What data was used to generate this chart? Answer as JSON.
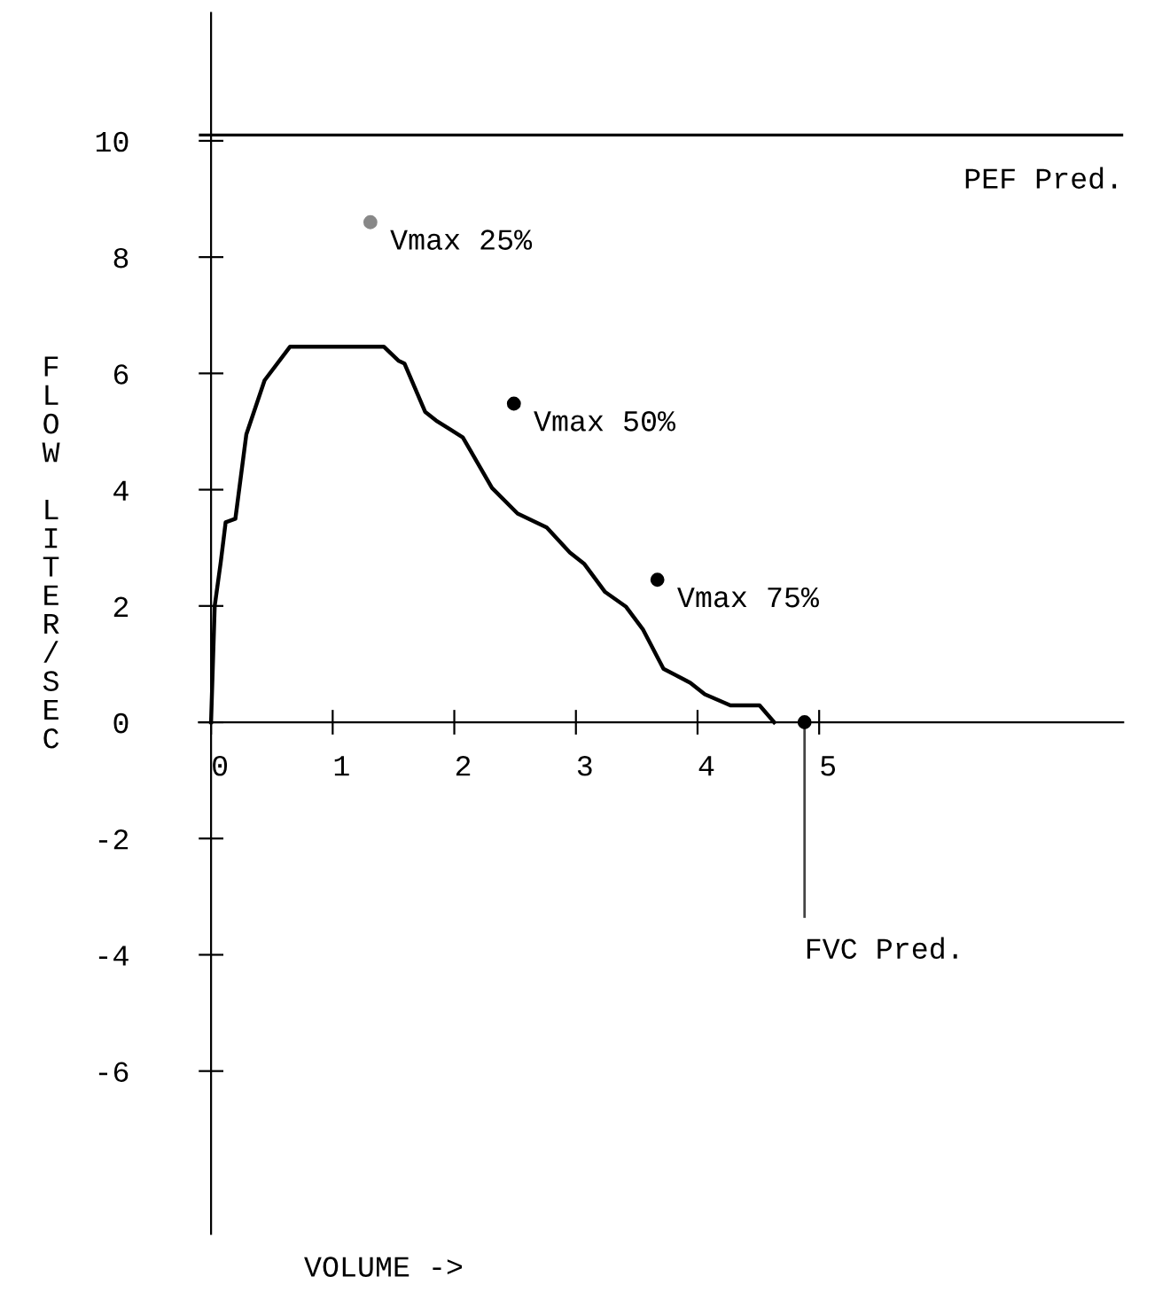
{
  "chart_data": {
    "type": "line",
    "xlabel": "VOLUME ->",
    "ylabel": "FLOW LITER/SEC",
    "xlim": [
      -0.1,
      7.5
    ],
    "ylim": [
      -8.8,
      12.2
    ],
    "xticks": [
      0,
      1,
      2,
      3,
      4,
      5
    ],
    "yticks": [
      -6,
      -4,
      -2,
      0,
      2,
      4,
      6,
      8,
      10
    ],
    "legend": false,
    "line_style": "solid",
    "series": [
      {
        "color": "#000000",
        "x": [
          0,
          0.03,
          0.08,
          0.12,
          0.2,
          0.29,
          0.44,
          0.65,
          1.42,
          1.54,
          1.59,
          1.76,
          1.85,
          2.07,
          2.31,
          2.52,
          2.76,
          2.95,
          3.07,
          3.24,
          3.41,
          3.55,
          3.72,
          3.94,
          4.06,
          4.27,
          4.51,
          4.63
        ],
        "values": [
          0,
          2.0,
          2.76,
          3.44,
          3.5,
          4.95,
          5.88,
          6.46,
          6.46,
          6.22,
          6.17,
          5.34,
          5.19,
          4.9,
          4.03,
          3.59,
          3.35,
          2.92,
          2.72,
          2.24,
          1.99,
          1.6,
          0.92,
          0.68,
          0.48,
          0.29,
          0.29,
          0
        ]
      },
      {
        "type": "scatter",
        "marker": "circle",
        "name": "Vmax 25%",
        "color": "#888888",
        "x": [
          1.31
        ],
        "values": [
          8.6
        ]
      },
      {
        "type": "scatter",
        "marker": "circle",
        "name": "Vmax 50%",
        "color": "#000000",
        "x": [
          2.49
        ],
        "values": [
          5.48
        ]
      },
      {
        "type": "scatter",
        "marker": "circle",
        "name": "Vmax 75%",
        "color": "#000000",
        "x": [
          3.67
        ],
        "values": [
          2.45
        ]
      },
      {
        "type": "scatter",
        "marker": "circle",
        "color": "#000000",
        "x": [
          4.88
        ],
        "values": [
          0
        ]
      }
    ],
    "ref_lines": [
      {
        "axis": "y",
        "value": 10.1,
        "label": "PEF Pred.",
        "color": "#000000"
      },
      {
        "axis": "x",
        "value": 4.88,
        "label": "FVC Pred.",
        "color": "#444444"
      }
    ]
  }
}
